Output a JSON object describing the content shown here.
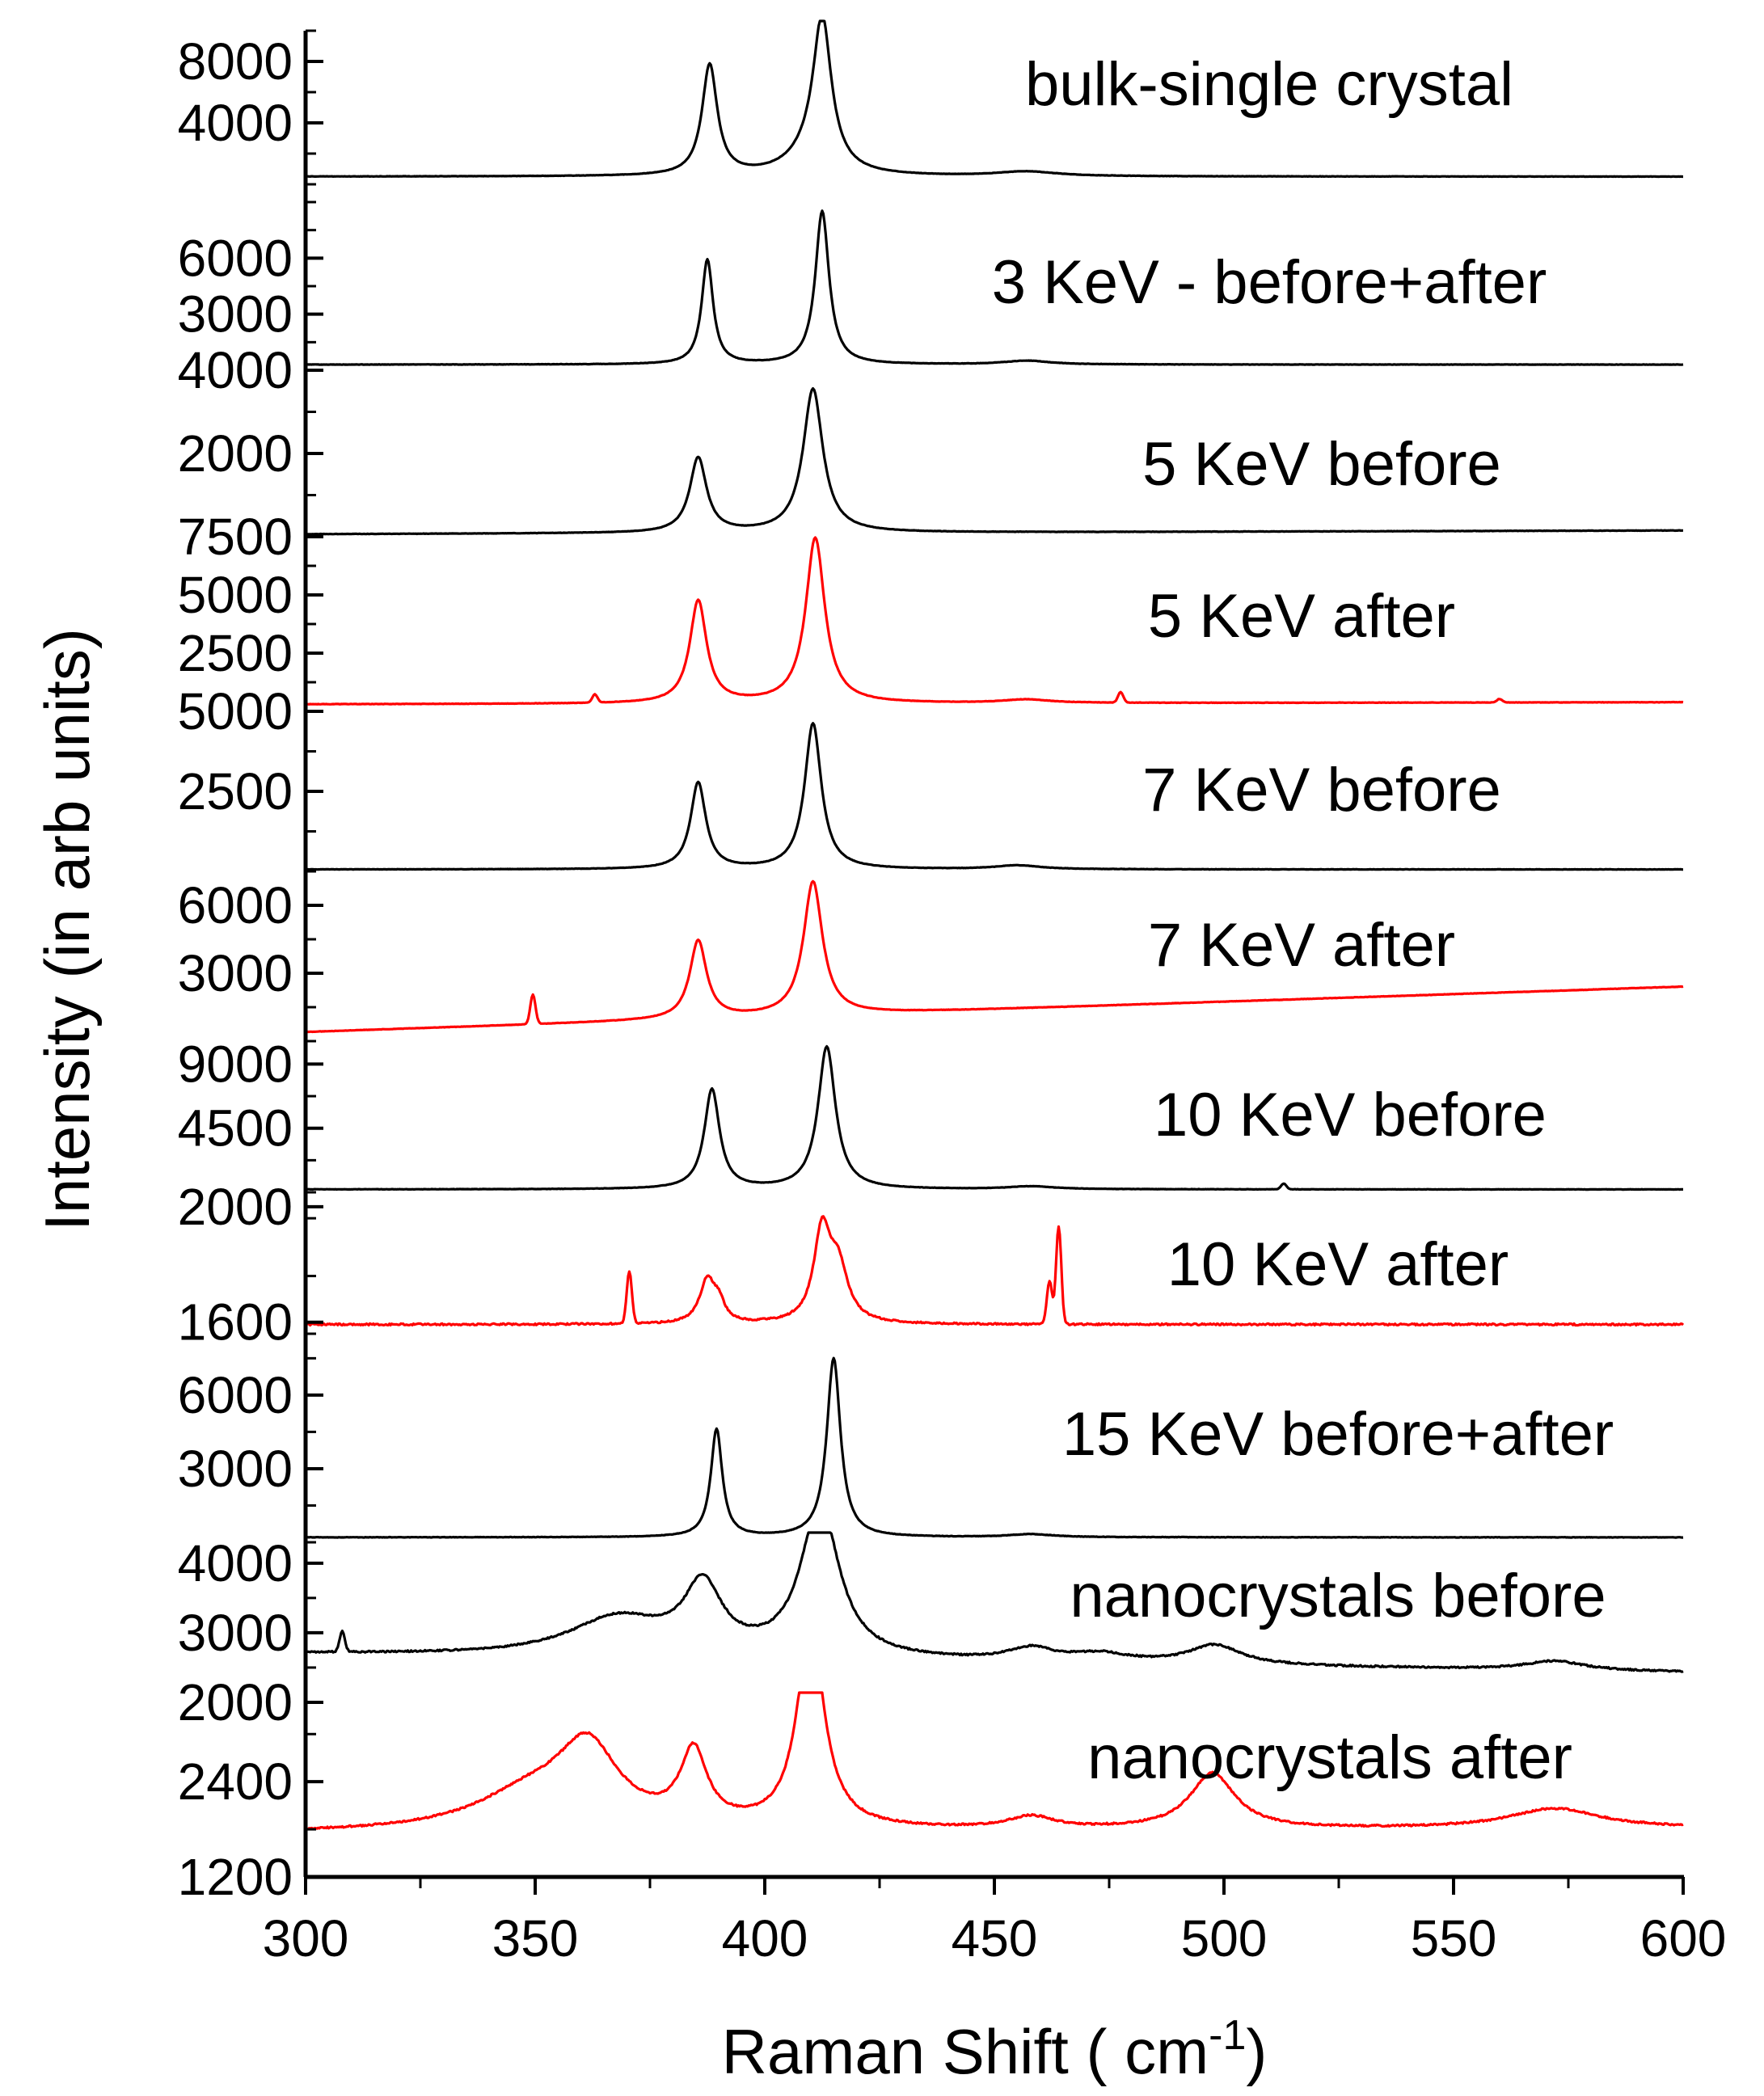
{
  "chart_data": {
    "type": "line",
    "title": "",
    "xlabel": "Raman Shift ( cm",
    "xlabel_superscript": "-1",
    "xlabel_suffix": ")",
    "ylabel": "Intensity (in arb units)",
    "xlim": [
      300,
      600
    ],
    "x_ticks": [
      "300",
      "350",
      "400",
      "450",
      "500",
      "550",
      "600"
    ],
    "x_tick_values": [
      300,
      350,
      400,
      450,
      500,
      550,
      600
    ],
    "colors": {
      "before": "#000000",
      "after": "#ff0000"
    },
    "panels": [
      {
        "label": "bulk-single crystal",
        "color": "#000000",
        "ylim": [
          0,
          10000
        ],
        "y_ticks": [
          {
            "value": 8000,
            "text": "8000"
          },
          {
            "value": 4000,
            "text": "4000"
          }
        ],
        "baseline": 500,
        "slope": 0,
        "peaks": [
          [
            388,
            7200,
            2.0
          ],
          [
            412.5,
            9500,
            2.4
          ],
          [
            410,
            1200,
            6
          ],
          [
            457,
            300,
            8
          ]
        ],
        "spikes": []
      },
      {
        "label": "3 KeV - before+after",
        "color": "#000000",
        "ylim": [
          0,
          9000
        ],
        "y_ticks": [
          {
            "value": 6000,
            "text": "6000"
          },
          {
            "value": 3000,
            "text": "3000"
          }
        ],
        "baseline": 300,
        "slope": 0,
        "peaks": [
          [
            387.5,
            5600,
            1.5
          ],
          [
            412.5,
            8200,
            1.8
          ],
          [
            457,
            200,
            6
          ]
        ],
        "spikes": []
      },
      {
        "label": "5 KeV before",
        "color": "#000000",
        "ylim": [
          0,
          4000
        ],
        "y_ticks": [
          {
            "value": 4000,
            "text": "4000"
          },
          {
            "value": 2000,
            "text": "2000"
          }
        ],
        "baseline": 60,
        "slope": 0.3,
        "peaks": [
          [
            385.5,
            1800,
            2.2
          ],
          [
            410.5,
            3450,
            2.6
          ]
        ],
        "spikes": []
      },
      {
        "label": "5 KeV after",
        "color": "#ff0000",
        "ylim": [
          0,
          7500
        ],
        "y_ticks": [
          {
            "value": 7500,
            "text": "7500"
          },
          {
            "value": 5000,
            "text": "5000"
          },
          {
            "value": 2500,
            "text": "2500"
          }
        ],
        "baseline": 300,
        "slope": 0.3,
        "peaks": [
          [
            385.5,
            4400,
            2.2
          ],
          [
            411,
            7100,
            2.5
          ],
          [
            457,
            150,
            6
          ]
        ],
        "spikes": [
          [
            363,
            350
          ],
          [
            477.5,
            450
          ],
          [
            560,
            150
          ]
        ]
      },
      {
        "label": "7 KeV before",
        "color": "#000000",
        "ylim": [
          0,
          5000
        ],
        "y_ticks": [
          {
            "value": 5000,
            "text": "5000"
          },
          {
            "value": 2500,
            "text": "2500"
          }
        ],
        "baseline": 60,
        "slope": 0,
        "peaks": [
          [
            385.5,
            2700,
            2.0
          ],
          [
            410.5,
            4550,
            2.2
          ],
          [
            455,
            120,
            6
          ]
        ],
        "spikes": []
      },
      {
        "label": "7 KeV after",
        "color": "#ff0000",
        "ylim": [
          0,
          7500
        ],
        "y_ticks": [
          {
            "value": 6000,
            "text": "6000"
          },
          {
            "value": 3000,
            "text": "3000"
          }
        ],
        "baseline": 400,
        "slope": 6.7,
        "peaks": [
          [
            385.5,
            3450,
            2.2
          ],
          [
            410.5,
            5900,
            2.5
          ]
        ],
        "spikes": [
          [
            349.5,
            1300
          ]
        ]
      },
      {
        "label": "10 KeV before",
        "color": "#000000",
        "ylim": [
          0,
          10500
        ],
        "y_ticks": [
          {
            "value": 9000,
            "text": "9000"
          },
          {
            "value": 4500,
            "text": "4500"
          }
        ],
        "baseline": 200,
        "slope": 0,
        "peaks": [
          [
            388.5,
            7000,
            2.0
          ],
          [
            413.5,
            10000,
            2.3
          ],
          [
            458,
            200,
            6
          ]
        ],
        "spikes": [
          [
            513,
            400
          ]
        ]
      },
      {
        "label": "10 KeV after",
        "color": "#ff0000",
        "ylim": [
          1560,
          2050
        ],
        "y_ticks": [
          {
            "value": 2000,
            "text": "2000"
          },
          {
            "value": 1600,
            "text": "1600"
          }
        ],
        "baseline": 1592,
        "slope": 0,
        "peaks": [
          [
            387.5,
            150,
            2.0
          ],
          [
            412.5,
            310,
            2.2
          ],
          [
            416,
            180,
            2.5
          ],
          [
            390,
            60,
            1.5
          ]
        ],
        "spikes": [
          [
            370.5,
            180
          ],
          [
            462,
            150
          ],
          [
            464,
            340
          ]
        ]
      },
      {
        "label": "15 KeV before+after",
        "color": "#000000",
        "ylim": [
          0,
          8500
        ],
        "y_ticks": [
          {
            "value": 6000,
            "text": "6000"
          },
          {
            "value": 3000,
            "text": "3000"
          }
        ],
        "baseline": 200,
        "slope": 0,
        "peaks": [
          [
            389.5,
            4400,
            1.5
          ],
          [
            415,
            7300,
            1.8
          ],
          [
            458,
            120,
            6
          ]
        ],
        "spikes": []
      },
      {
        "label": "nanocrystals before",
        "color": "#000000",
        "ylim": [
          2000,
          4300
        ],
        "y_ticks": [
          {
            "value": 4000,
            "text": "4000"
          },
          {
            "value": 3000,
            "text": "3000"
          },
          {
            "value": 2000,
            "text": "2000"
          }
        ],
        "baseline": 2700,
        "slope": -0.9,
        "peaks": [
          [
            368,
            550,
            13
          ],
          [
            386.5,
            950,
            5
          ],
          [
            412,
            2200,
            5
          ],
          [
            458,
            180,
            6
          ],
          [
            473,
            120,
            8
          ],
          [
            498,
            280,
            7
          ],
          [
            572,
            130,
            8
          ]
        ],
        "spikes": [
          [
            308,
            300
          ]
        ]
      },
      {
        "label": "nanocrystals after",
        "color": "#ff0000",
        "ylim": [
          1200,
          3400
        ],
        "y_ticks": [
          {
            "value": 2400,
            "text": "2400"
          },
          {
            "value": 1200,
            "text": "1200"
          }
        ],
        "baseline": 1750,
        "slope": 0.2,
        "peaks": [
          [
            349,
            450,
            15
          ],
          [
            361.5,
            950,
            8
          ],
          [
            384.5,
            900,
            3.5
          ],
          [
            410,
            2550,
            3.5
          ],
          [
            458,
            150,
            6
          ],
          [
            497.5,
            700,
            6
          ],
          [
            572,
            250,
            12
          ]
        ],
        "spikes": []
      }
    ]
  }
}
